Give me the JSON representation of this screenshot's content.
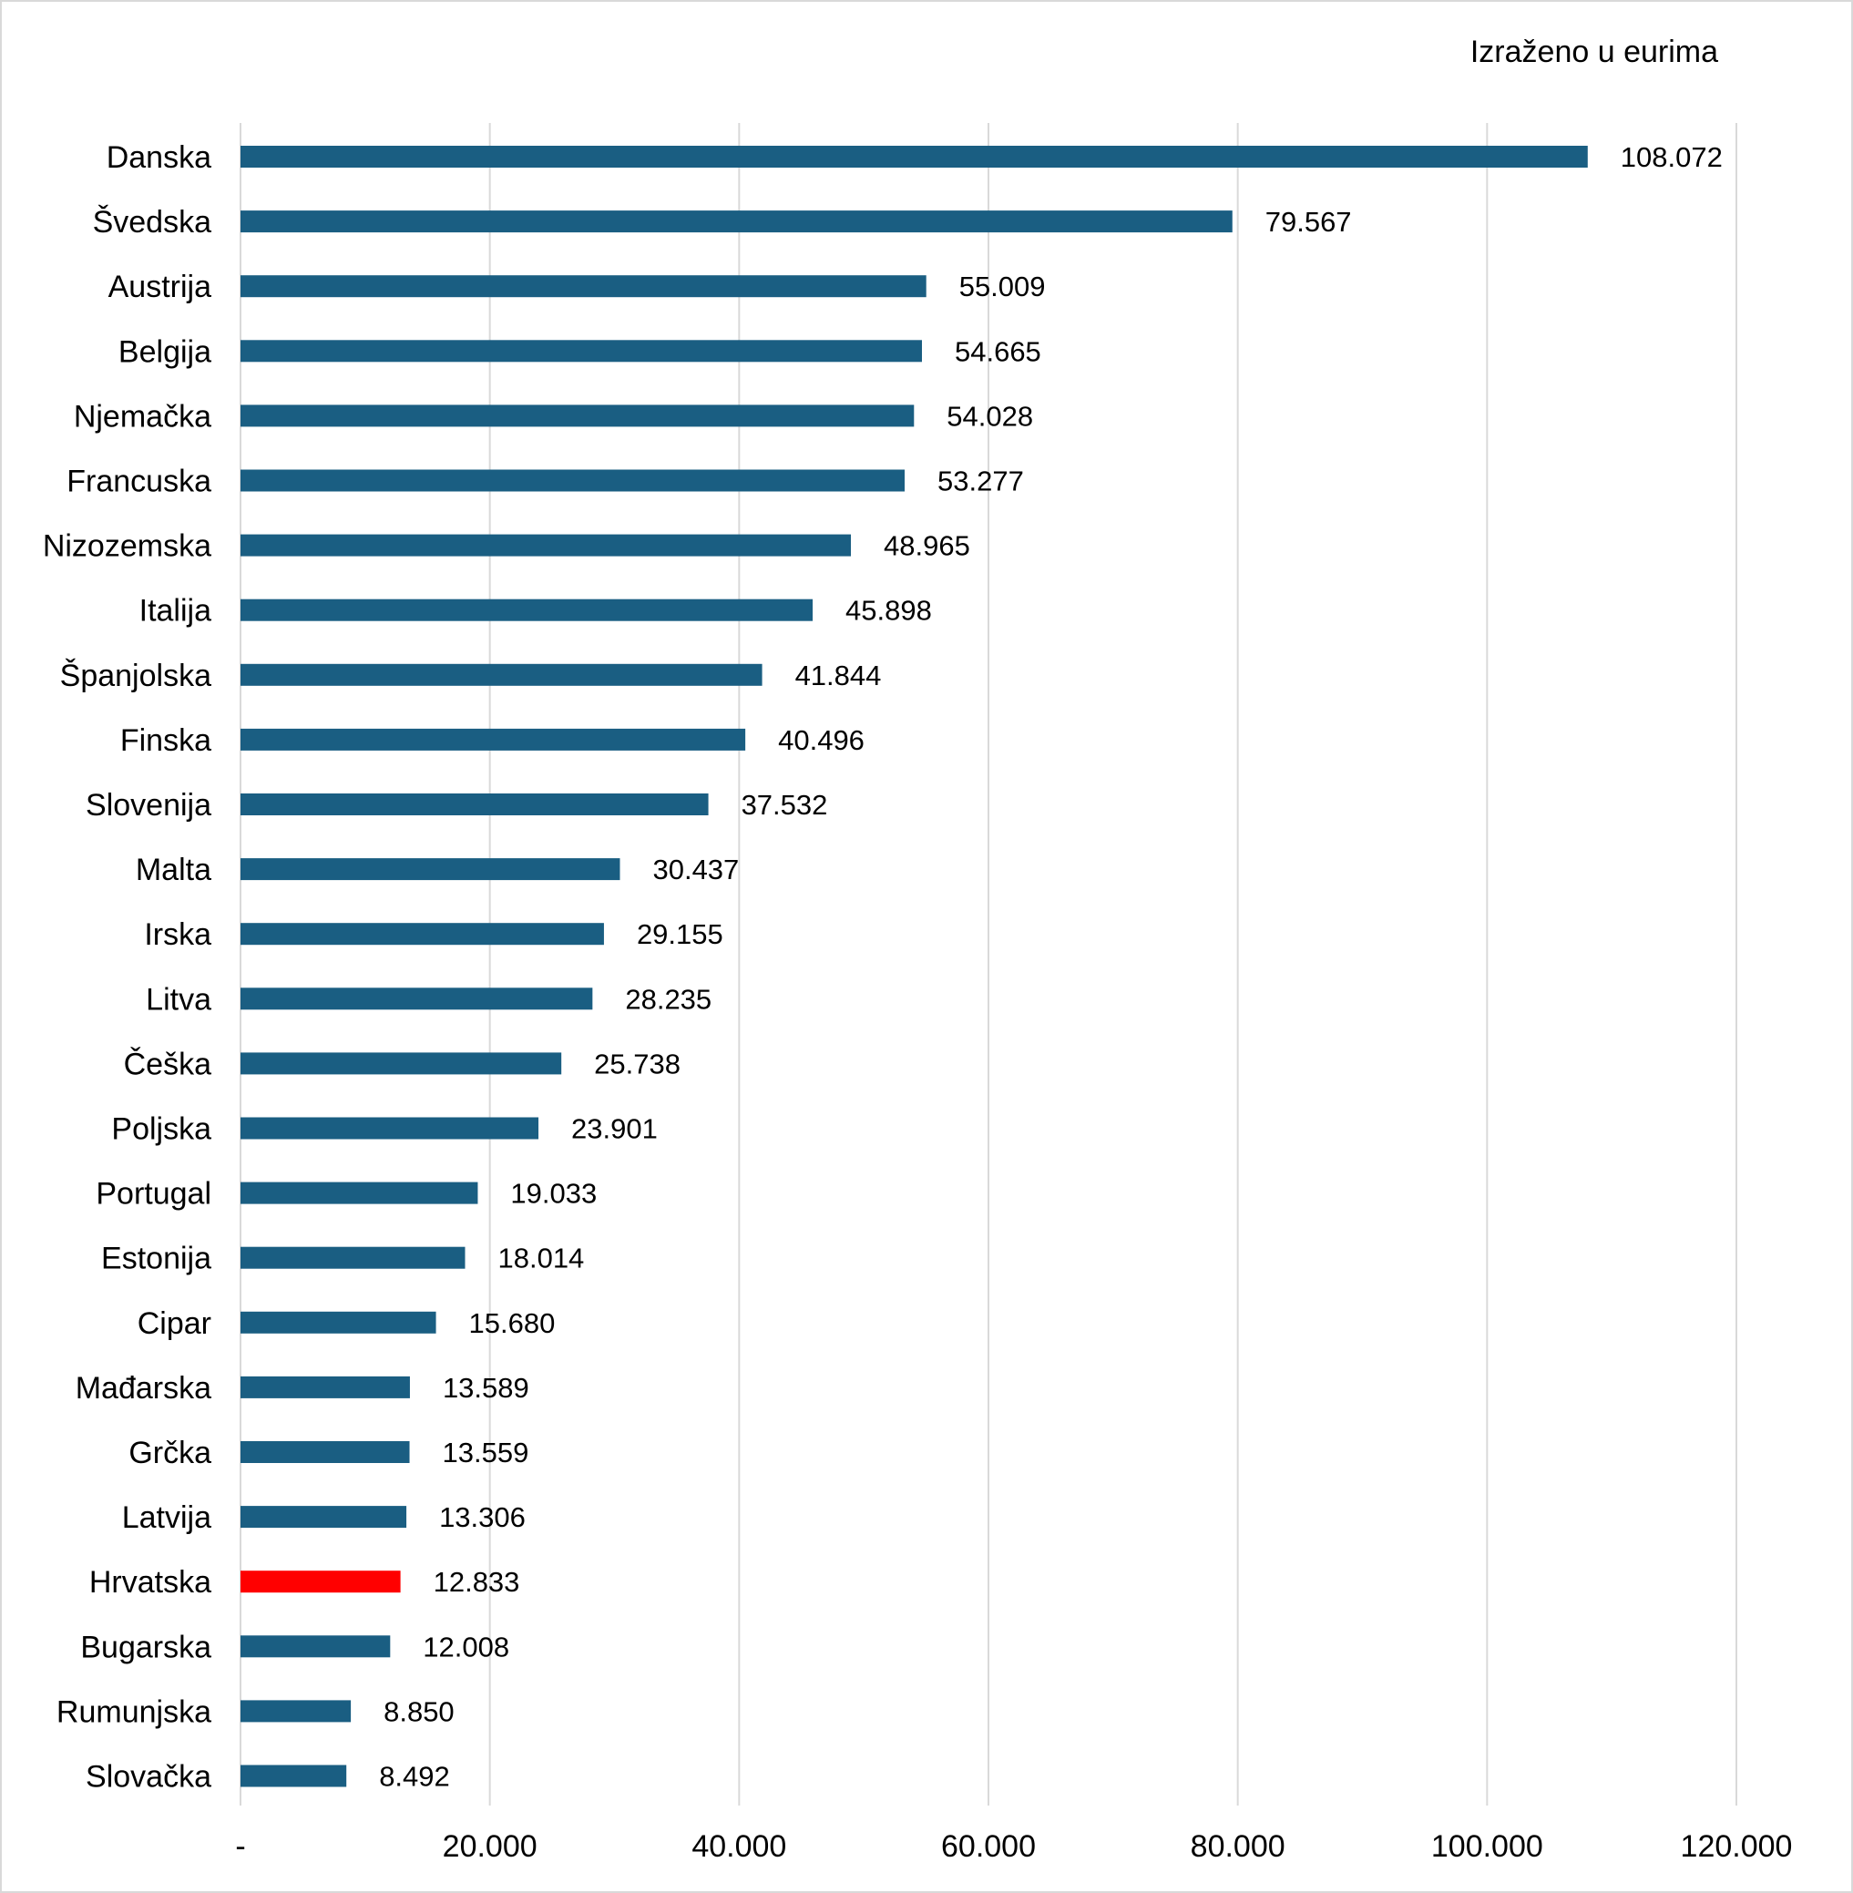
{
  "unit_note": "Izraženo u eurima",
  "chart_data": {
    "type": "bar",
    "orientation": "horizontal",
    "unit_note": "Izraženo u eurima",
    "categories": [
      "Danska",
      "Švedska",
      "Austrija",
      "Belgija",
      "Njemačka",
      "Francuska",
      "Nizozemska",
      "Italija",
      "Španjolska",
      "Finska",
      "Slovenija",
      "Malta",
      "Irska",
      "Litva",
      "Češka",
      "Poljska",
      "Portugal",
      "Estonija",
      "Cipar",
      "Mađarska",
      "Grčka",
      "Latvija",
      "Hrvatska",
      "Bugarska",
      "Rumunjska",
      "Slovačka"
    ],
    "values": [
      108072,
      79567,
      55009,
      54665,
      54028,
      53277,
      48965,
      45898,
      41844,
      40496,
      37532,
      30437,
      29155,
      28235,
      25738,
      23901,
      19033,
      18014,
      15680,
      13589,
      13559,
      13306,
      12833,
      12008,
      8850,
      8492
    ],
    "value_labels": [
      "108.072",
      "79.567",
      "55.009",
      "54.665",
      "54.028",
      "53.277",
      "48.965",
      "45.898",
      "41.844",
      "40.496",
      "37.532",
      "30.437",
      "29.155",
      "28.235",
      "25.738",
      "23.901",
      "19.033",
      "18.014",
      "15.680",
      "13.589",
      "13.559",
      "13.306",
      "12.833",
      "12.008",
      "8.850",
      "8.492"
    ],
    "xlim": [
      0,
      120000
    ],
    "xticks": [
      0,
      20000,
      40000,
      60000,
      80000,
      100000,
      120000
    ],
    "xtick_labels": [
      "-",
      "20.000",
      "40.000",
      "60.000",
      "80.000",
      "100.000",
      "120.000"
    ],
    "grid": "vertical",
    "legend": "none",
    "bar_color": "#1a5e82",
    "highlight_category": "Hrvatska",
    "highlight_color": "#ff0000",
    "gridline_color": "#d9d9d9"
  }
}
